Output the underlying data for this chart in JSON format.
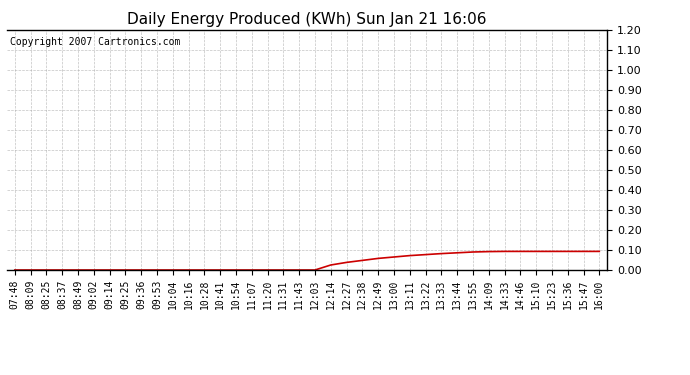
{
  "title": "Daily Energy Produced (KWh) Sun Jan 21 16:06",
  "copyright_text": "Copyright 2007 Cartronics.com",
  "background_color": "#ffffff",
  "plot_bg_color": "#ffffff",
  "grid_color": "#aaaaaa",
  "line_color": "#cc0000",
  "ylim": [
    0.0,
    1.2
  ],
  "yticks": [
    0.0,
    0.1,
    0.2,
    0.3,
    0.4,
    0.5,
    0.6,
    0.7,
    0.8,
    0.9,
    1.0,
    1.1,
    1.2
  ],
  "x_labels": [
    "07:48",
    "08:09",
    "08:25",
    "08:37",
    "08:49",
    "09:02",
    "09:14",
    "09:25",
    "09:36",
    "09:53",
    "10:04",
    "10:16",
    "10:28",
    "10:41",
    "10:54",
    "11:07",
    "11:20",
    "11:31",
    "11:43",
    "12:03",
    "12:14",
    "12:27",
    "12:38",
    "12:49",
    "13:00",
    "13:11",
    "13:22",
    "13:33",
    "13:44",
    "13:55",
    "14:09",
    "14:33",
    "14:46",
    "15:10",
    "15:23",
    "15:36",
    "15:47",
    "16:00"
  ],
  "y_values": [
    0.0,
    0.0,
    0.0,
    0.0,
    0.0,
    0.0,
    0.0,
    0.0,
    0.0,
    0.0,
    0.0,
    0.0,
    0.0,
    0.0,
    0.0,
    0.0,
    0.0,
    0.0,
    0.0,
    0.0,
    0.025,
    0.038,
    0.048,
    0.058,
    0.065,
    0.072,
    0.077,
    0.082,
    0.086,
    0.09,
    0.092,
    0.093,
    0.093,
    0.093,
    0.093,
    0.093,
    0.093,
    0.093
  ],
  "title_fontsize": 11,
  "copyright_fontsize": 7,
  "tick_fontsize": 7,
  "ytick_fontsize": 8
}
